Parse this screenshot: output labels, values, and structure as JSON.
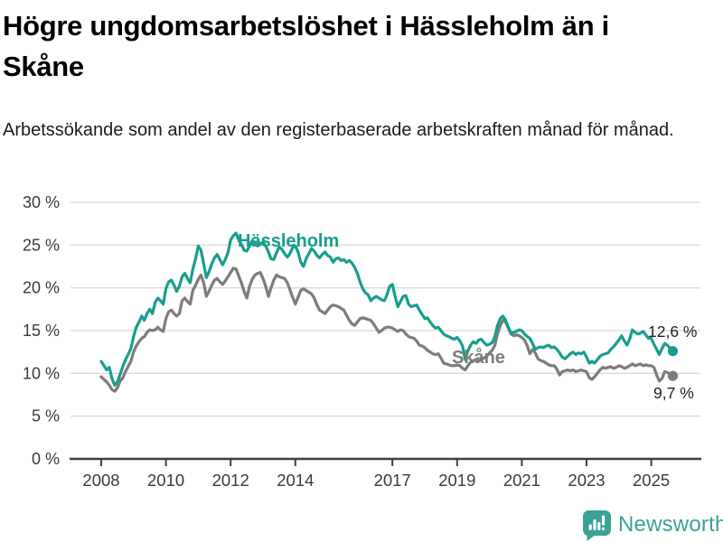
{
  "chart_data": {
    "type": "line",
    "title": "Högre ungdomsarbetslöshet i Hässleholm än i Skåne",
    "subtitle": "Arbetssökande som andel av den registerbaserade arbetskraften månad för månad.",
    "frequency": "monthly",
    "x_range": [
      "2008-01",
      "2025-09"
    ],
    "ylim": [
      0,
      30
    ],
    "grid": "horizontal",
    "y_axis": {
      "ticks": [
        {
          "value": 0,
          "label": "0 %"
        },
        {
          "value": 5,
          "label": "5 %"
        },
        {
          "value": 10,
          "label": "10 %"
        },
        {
          "value": 15,
          "label": "15 %"
        },
        {
          "value": 20,
          "label": "20 %"
        },
        {
          "value": 25,
          "label": "25 %"
        },
        {
          "value": 30,
          "label": "30 %"
        }
      ]
    },
    "x_axis": {
      "ticks": [
        {
          "year": 2008,
          "label": "2008"
        },
        {
          "year": 2010,
          "label": "2010"
        },
        {
          "year": 2012,
          "label": "2012"
        },
        {
          "year": 2014,
          "label": "2014"
        },
        {
          "year": 2017,
          "label": "2017"
        },
        {
          "year": 2019,
          "label": "2019"
        },
        {
          "year": 2021,
          "label": "2021"
        },
        {
          "year": 2023,
          "label": "2023"
        },
        {
          "year": 2025,
          "label": "2025"
        }
      ]
    },
    "series": [
      {
        "name": "Hässleholm",
        "color": "#179E8D",
        "end_label": "12,6 %",
        "end_value": 12.6,
        "values": [
          11.4,
          10.9,
          10.4,
          10.7,
          9.4,
          8.6,
          9.0,
          9.9,
          10.8,
          11.6,
          12.2,
          12.9,
          14.3,
          15.4,
          16.0,
          16.7,
          16.2,
          17.0,
          17.5,
          17.0,
          18.3,
          18.8,
          18.5,
          18.1,
          19.9,
          20.7,
          20.9,
          20.3,
          19.6,
          20.2,
          21.3,
          21.7,
          21.1,
          20.6,
          22.2,
          23.4,
          24.9,
          24.4,
          22.8,
          21.2,
          21.9,
          22.8,
          23.5,
          23.9,
          23.3,
          22.7,
          23.3,
          24.1,
          25.6,
          26.1,
          26.4,
          25.6,
          25.1,
          24.4,
          24.3,
          24.9,
          25.5,
          25.3,
          24.9,
          25.2,
          25.3,
          24.9,
          24.2,
          23.4,
          23.3,
          24.1,
          24.8,
          24.5,
          24.0,
          23.6,
          24.0,
          24.7,
          24.9,
          24.2,
          23.0,
          22.5,
          23.4,
          24.0,
          24.6,
          24.3,
          23.8,
          23.5,
          23.9,
          24.2,
          23.8,
          23.6,
          23.0,
          23.4,
          23.5,
          23.2,
          23.3,
          23.0,
          23.2,
          22.9,
          22.4,
          21.7,
          20.7,
          19.9,
          19.4,
          19.2,
          18.5,
          18.8,
          19.0,
          18.8,
          18.6,
          18.5,
          19.2,
          20.2,
          20.4,
          19.0,
          17.8,
          18.4,
          19.0,
          19.1,
          18.1,
          17.8,
          17.9,
          18.0,
          17.4,
          16.9,
          16.4,
          16.5,
          16.0,
          15.6,
          15.3,
          15.4,
          15.0,
          14.6,
          14.4,
          14.3,
          14.1,
          14.0,
          14.2,
          13.8,
          13.2,
          11.6,
          12.6,
          13.3,
          13.7,
          13.5,
          13.9,
          14.0,
          13.6,
          13.3,
          13.4,
          13.6,
          14.3,
          15.6,
          16.4,
          16.7,
          16.2,
          15.4,
          14.7,
          14.8,
          14.9,
          15.1,
          15.0,
          14.6,
          14.3,
          14.1,
          13.5,
          12.8,
          13.0,
          13.1,
          13.0,
          13.2,
          13.3,
          13.0,
          13.1,
          12.8,
          12.4,
          11.9,
          11.7,
          12.0,
          12.3,
          12.5,
          12.2,
          12.4,
          12.3,
          12.5,
          11.9,
          11.2,
          11.4,
          11.2,
          11.6,
          12.0,
          12.2,
          12.3,
          12.4,
          12.8,
          13.1,
          13.5,
          13.9,
          14.4,
          13.8,
          13.3,
          14.0,
          15.1,
          14.8,
          14.6,
          14.7,
          14.9,
          14.5,
          14.1,
          14.1,
          13.4,
          12.8,
          12.2,
          12.9,
          13.5,
          13.3,
          12.9,
          12.6
        ]
      },
      {
        "name": "Skåne",
        "color": "#7C7C7C",
        "end_label": "9,7 %",
        "end_value": 9.7,
        "values": [
          9.6,
          9.3,
          9.0,
          8.6,
          8.1,
          7.9,
          8.3,
          9.1,
          9.5,
          10.2,
          10.8,
          11.4,
          12.5,
          13.2,
          13.7,
          14.1,
          14.3,
          14.8,
          15.1,
          15.0,
          15.1,
          15.4,
          15.1,
          14.9,
          16.4,
          17.2,
          17.4,
          17.0,
          16.7,
          17.0,
          18.5,
          18.8,
          18.4,
          18.1,
          19.7,
          20.3,
          21.0,
          21.5,
          20.6,
          19.0,
          19.6,
          20.3,
          20.9,
          21.1,
          20.7,
          20.4,
          20.8,
          21.3,
          21.8,
          22.3,
          22.2,
          21.4,
          20.6,
          19.6,
          18.8,
          20.2,
          21.0,
          21.5,
          21.7,
          21.8,
          21.1,
          20.2,
          19.0,
          20.0,
          20.9,
          21.5,
          21.3,
          21.2,
          21.1,
          20.6,
          19.8,
          18.9,
          18.1,
          18.9,
          19.7,
          19.9,
          19.7,
          19.5,
          19.3,
          18.8,
          18.0,
          17.4,
          17.2,
          17.0,
          17.4,
          17.8,
          18.0,
          17.9,
          17.8,
          17.6,
          17.4,
          16.8,
          16.2,
          15.8,
          15.6,
          16.0,
          16.4,
          16.5,
          16.4,
          16.3,
          16.2,
          15.8,
          15.3,
          14.8,
          15.0,
          15.3,
          15.4,
          15.4,
          15.3,
          15.1,
          14.9,
          15.1,
          15.0,
          14.6,
          14.3,
          14.2,
          14.1,
          13.8,
          13.3,
          13.2,
          13.0,
          12.7,
          12.5,
          12.3,
          12.2,
          12.3,
          11.8,
          11.2,
          11.1,
          11.0,
          10.9,
          10.9,
          11.0,
          10.9,
          10.6,
          10.4,
          10.9,
          11.3,
          11.5,
          11.6,
          11.5,
          11.6,
          11.8,
          12.0,
          12.4,
          12.7,
          13.3,
          14.6,
          15.6,
          16.2,
          16.0,
          15.3,
          14.6,
          14.4,
          14.5,
          14.4,
          14.2,
          13.9,
          13.2,
          12.3,
          12.8,
          12.4,
          11.7,
          11.5,
          11.4,
          11.2,
          11.0,
          10.9,
          10.9,
          10.5,
          9.8,
          10.2,
          10.3,
          10.4,
          10.3,
          10.4,
          10.2,
          10.3,
          10.4,
          10.3,
          10.2,
          9.5,
          9.3,
          9.6,
          10.0,
          10.4,
          10.7,
          10.6,
          10.7,
          10.8,
          10.6,
          10.7,
          10.9,
          10.8,
          10.6,
          10.7,
          10.9,
          11.1,
          10.9,
          11.0,
          11.1,
          10.9,
          11.0,
          10.9,
          10.9,
          10.7,
          9.8,
          9.1,
          9.4,
          10.2,
          10.1,
          9.9,
          9.7
        ]
      }
    ]
  },
  "footer": {
    "brand": "Newsworthy"
  }
}
